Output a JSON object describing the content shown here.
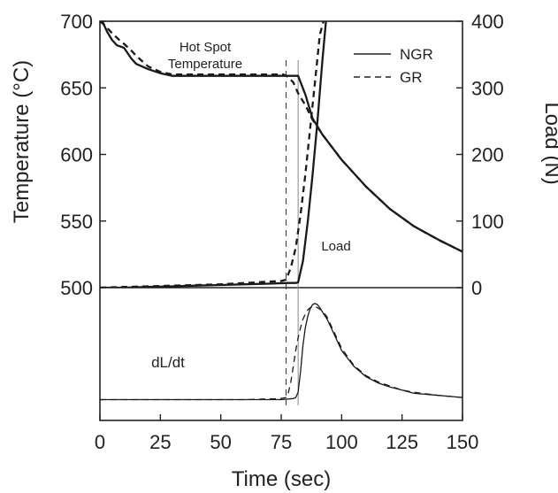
{
  "chart_data": [
    {
      "type": "line",
      "panel": "top",
      "xlabel": "Time (sec)",
      "ylabel_left": "Temperature (°C)",
      "ylabel_right": "Load (N)",
      "xlim": [
        0,
        150
      ],
      "ylim_left": [
        500,
        700
      ],
      "ylim_right": [
        0,
        400
      ],
      "xticks": [
        0,
        25,
        50,
        75,
        100,
        125,
        150
      ],
      "yticks_left": [
        500,
        550,
        600,
        650,
        700
      ],
      "yticks_right": [
        0,
        100,
        200,
        300,
        400
      ],
      "legend": {
        "placement": "top-right",
        "entries": [
          {
            "name": "NGR",
            "style": "solid"
          },
          {
            "name": "GR",
            "style": "dashed"
          }
        ]
      },
      "annotations": [
        {
          "text": "Hot Spot",
          "x": 28,
          "y": 681
        },
        {
          "text": "Temperature",
          "x": 28,
          "y": 666
        },
        {
          "text": "Load",
          "x": 92,
          "y": 530
        }
      ],
      "vertical_markers": [
        {
          "series": "GR",
          "x": 77,
          "style": "dashed"
        },
        {
          "series": "NGR",
          "x": 82,
          "style": "solid"
        }
      ],
      "series": [
        {
          "name": "NGR",
          "kind": "Hot Spot Temperature",
          "axis": "left",
          "style": "solid",
          "x": [
            1,
            3,
            5,
            7,
            10,
            13,
            15,
            20,
            25,
            30,
            40,
            50,
            60,
            70,
            80,
            82,
            85,
            88,
            92,
            100,
            110,
            120,
            130,
            140,
            150
          ],
          "y": [
            700,
            692,
            686,
            682,
            680,
            672,
            668,
            664,
            661,
            659,
            659,
            659,
            659,
            659,
            659,
            659,
            645,
            627,
            615,
            596,
            576,
            559,
            546,
            536,
            527
          ]
        },
        {
          "name": "GR",
          "kind": "Hot Spot Temperature",
          "axis": "left",
          "style": "dashed",
          "x": [
            0,
            2,
            5,
            8,
            10,
            13,
            15,
            20,
            25,
            30,
            40,
            50,
            60,
            70,
            76,
            78,
            80,
            82,
            85,
            88,
            92,
            100,
            110,
            120,
            130,
            140,
            150
          ],
          "y": [
            700,
            697,
            691,
            686,
            683,
            678,
            674,
            666,
            662,
            660,
            660,
            660,
            660,
            660,
            660,
            658,
            654,
            646,
            637,
            626,
            615,
            596,
            576,
            559,
            546,
            536,
            527
          ]
        },
        {
          "name": "NGR",
          "kind": "Load",
          "axis": "right",
          "style": "solid",
          "x": [
            0,
            10,
            20,
            30,
            40,
            50,
            60,
            70,
            78,
            81,
            82,
            84,
            86,
            88,
            90,
            92,
            93.5
          ],
          "y": [
            0,
            0,
            1,
            2,
            3,
            4,
            5,
            6,
            7,
            7,
            8,
            40,
            100,
            170,
            250,
            340,
            400
          ]
        },
        {
          "name": "GR",
          "kind": "Load",
          "axis": "right",
          "style": "dashed",
          "x": [
            0,
            10,
            20,
            30,
            40,
            50,
            60,
            70,
            75,
            77,
            79,
            81,
            83,
            85,
            87,
            89,
            91,
            92.5
          ],
          "y": [
            0,
            1,
            2,
            3,
            4,
            5,
            7,
            9,
            10,
            12,
            30,
            60,
            110,
            170,
            240,
            310,
            380,
            400
          ]
        }
      ]
    },
    {
      "type": "line",
      "panel": "bottom",
      "ylabel": "",
      "xlim": [
        0,
        150
      ],
      "ylim": [
        0,
        1
      ],
      "annotations": [
        {
          "text": "dL/dt",
          "x": 28,
          "y": 0.58
        }
      ],
      "series": [
        {
          "name": "NGR",
          "kind": "dL/dt",
          "style": "solid",
          "x": [
            0,
            20,
            40,
            60,
            75,
            80,
            81,
            82,
            83,
            84,
            85,
            86,
            87,
            88,
            89,
            90,
            91,
            92,
            94,
            96,
            98,
            100,
            105,
            110,
            115,
            120,
            125,
            130,
            140,
            150
          ],
          "y": [
            0.03,
            0.03,
            0.03,
            0.03,
            0.03,
            0.04,
            0.05,
            0.1,
            0.3,
            0.55,
            0.72,
            0.83,
            0.9,
            0.94,
            0.95,
            0.94,
            0.91,
            0.87,
            0.8,
            0.7,
            0.6,
            0.5,
            0.35,
            0.25,
            0.19,
            0.15,
            0.12,
            0.09,
            0.07,
            0.05
          ]
        },
        {
          "name": "GR",
          "kind": "dL/dt",
          "style": "dashed",
          "x": [
            0,
            20,
            40,
            60,
            75,
            77,
            78,
            79,
            80,
            81,
            82,
            83,
            84,
            85,
            86,
            87,
            88,
            89,
            90,
            92,
            94,
            96,
            98,
            100,
            105,
            110,
            115,
            120,
            125,
            130,
            140,
            150
          ],
          "y": [
            0.03,
            0.03,
            0.03,
            0.03,
            0.04,
            0.05,
            0.1,
            0.2,
            0.35,
            0.5,
            0.62,
            0.72,
            0.8,
            0.85,
            0.89,
            0.91,
            0.92,
            0.92,
            0.91,
            0.88,
            0.82,
            0.72,
            0.62,
            0.52,
            0.36,
            0.26,
            0.2,
            0.16,
            0.12,
            0.1,
            0.07,
            0.05
          ]
        }
      ]
    }
  ]
}
